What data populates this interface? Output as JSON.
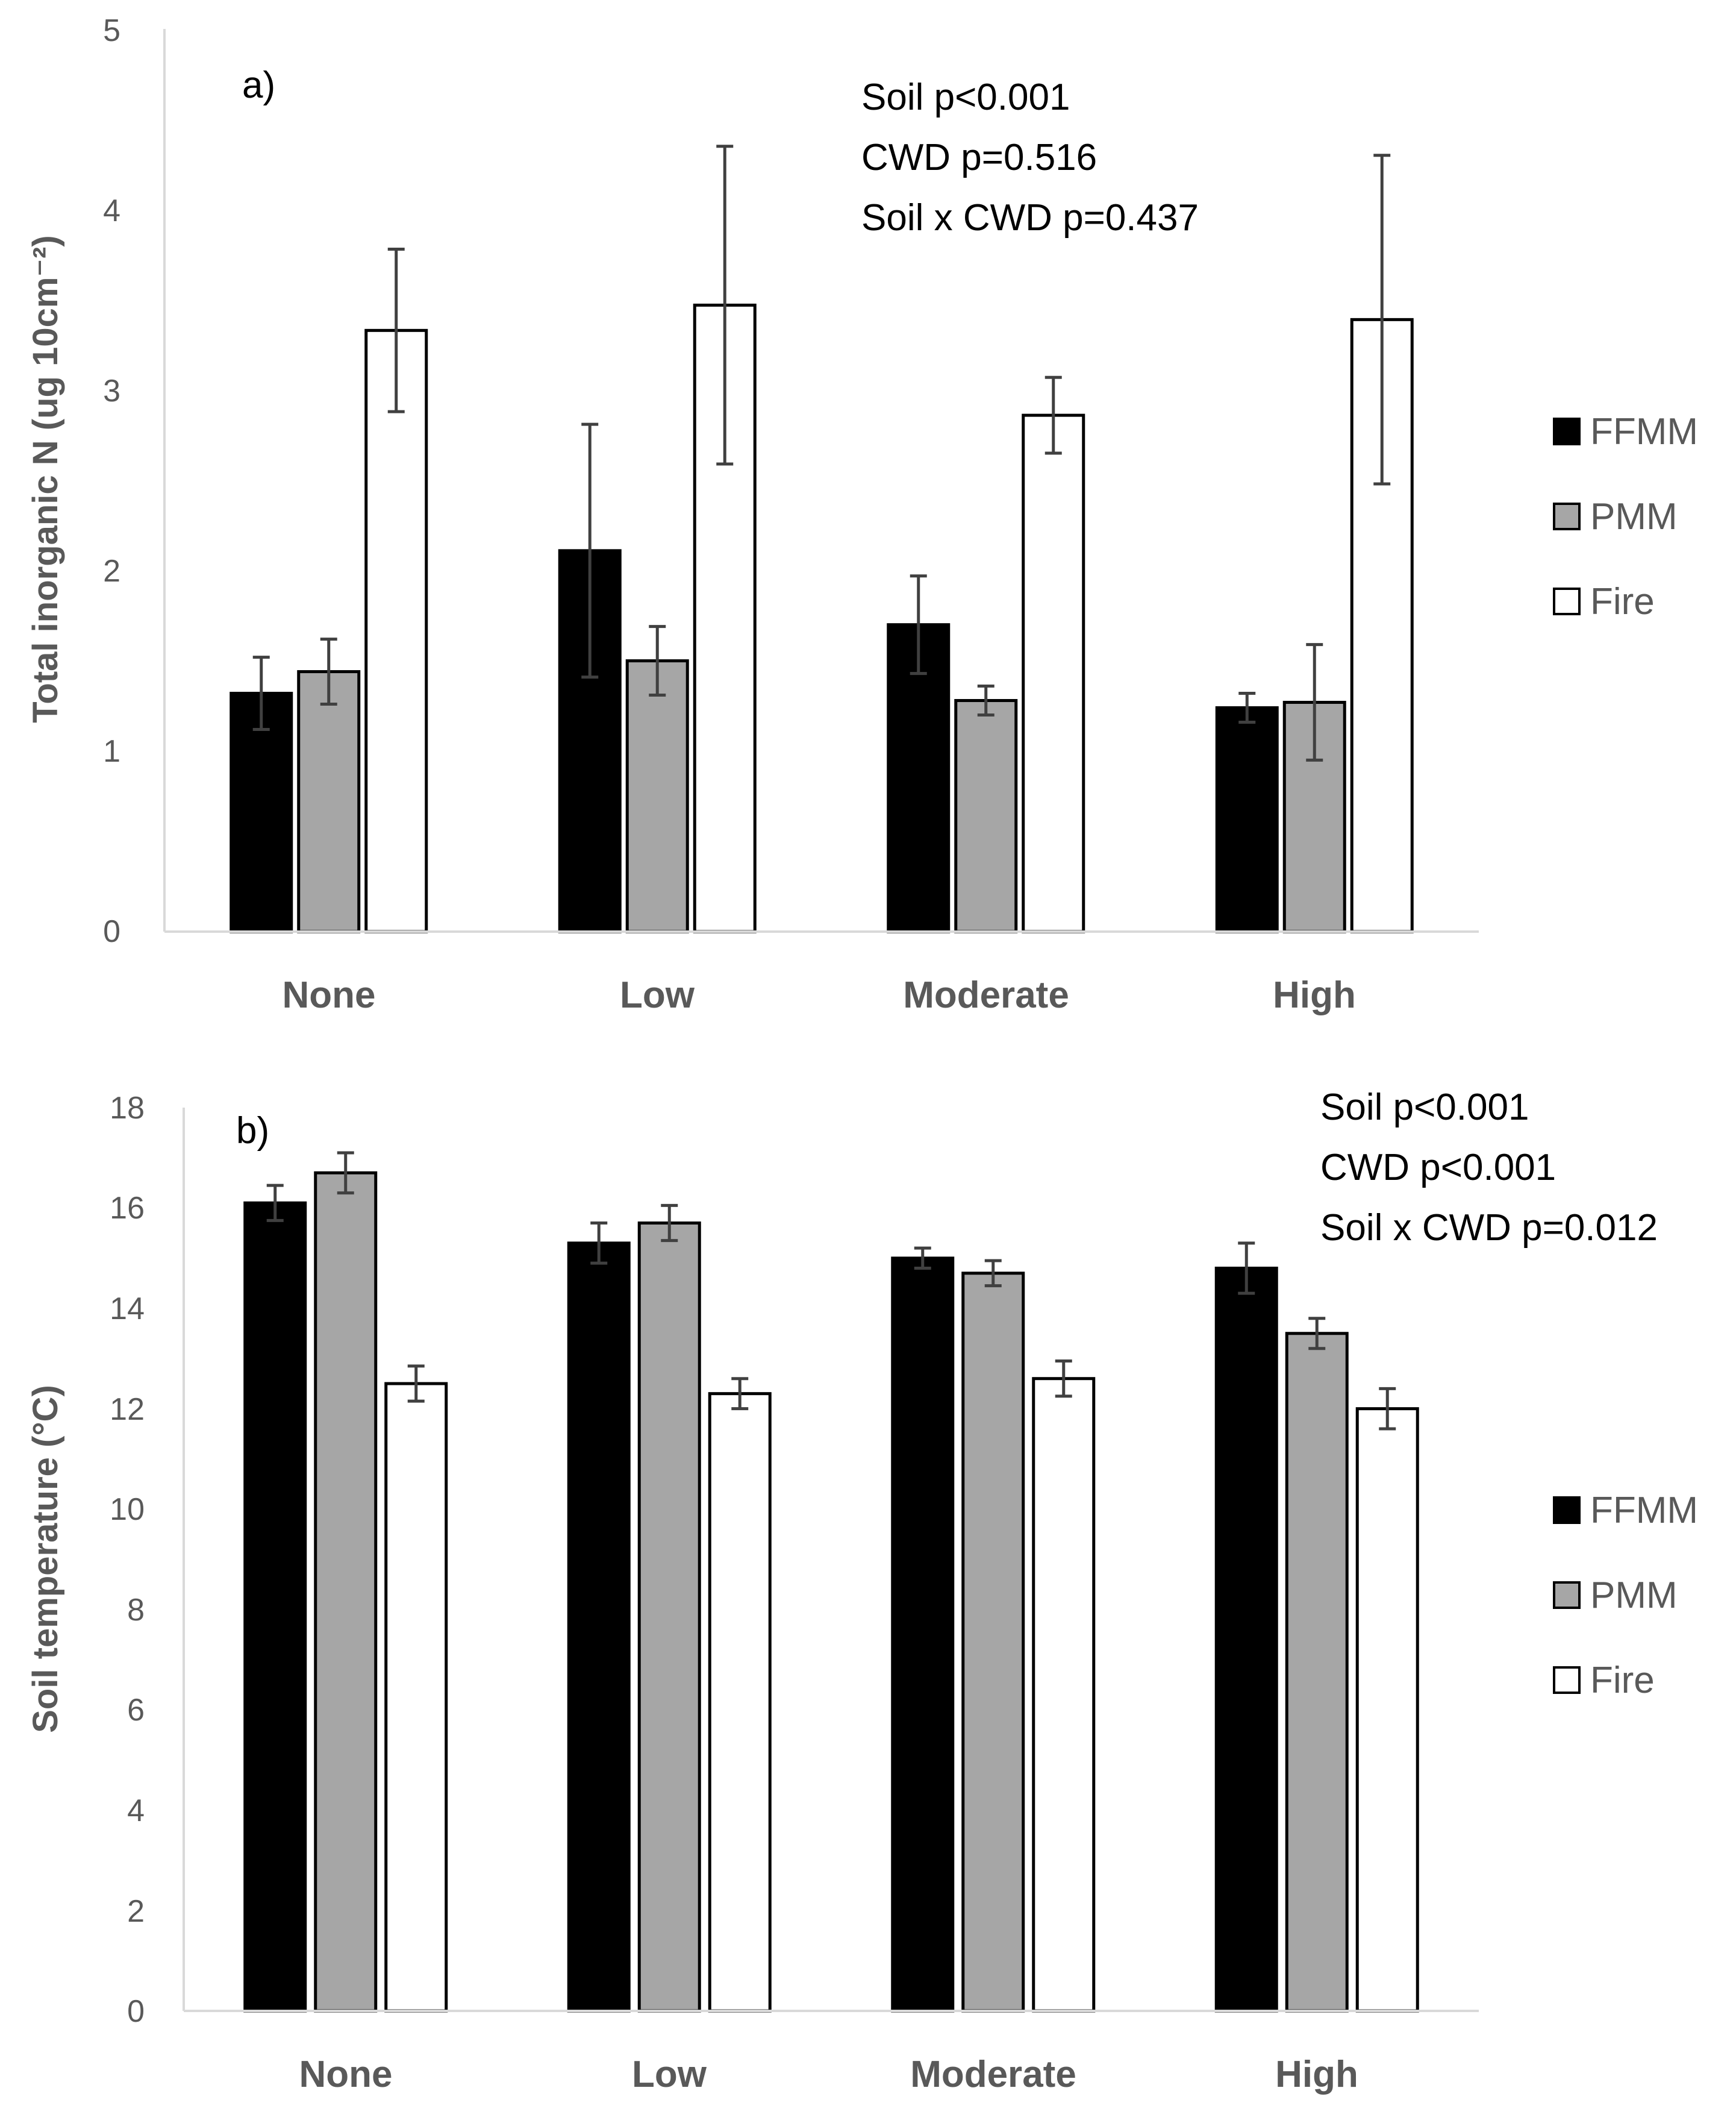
{
  "chart_data": [
    {
      "type": "bar",
      "panel_label": "a)",
      "ylabel": "Total inorganic N (ug 10cm⁻²)",
      "xlabel": "",
      "ylim": [
        0,
        5
      ],
      "yticks": [
        "0",
        "1",
        "2",
        "3",
        "4",
        "5"
      ],
      "categories": [
        "None",
        "Low",
        "Moderate",
        "High"
      ],
      "series": [
        {
          "name": "FFMM",
          "color": "#000000",
          "values": [
            1.32,
            2.11,
            1.7,
            1.24
          ],
          "errors": [
            0.2,
            0.7,
            0.27,
            0.08
          ]
        },
        {
          "name": "PMM",
          "color": "#a6a6a6",
          "values": [
            1.44,
            1.5,
            1.28,
            1.27
          ],
          "errors": [
            0.18,
            0.19,
            0.08,
            0.32
          ]
        },
        {
          "name": "Fire",
          "color": "#ffffff",
          "values": [
            3.33,
            3.47,
            2.86,
            3.39
          ],
          "errors": [
            0.45,
            0.88,
            0.21,
            0.91
          ]
        }
      ],
      "annotations": [
        "Soil p<0.001",
        "CWD p=0.516",
        "Soil x CWD p=0.437"
      ],
      "legend": "right"
    },
    {
      "type": "bar",
      "panel_label": "b)",
      "ylabel": "Soil temperature (°C)",
      "xlabel": "",
      "ylim": [
        0,
        18
      ],
      "yticks": [
        "0",
        "2",
        "4",
        "6",
        "8",
        "10",
        "12",
        "14",
        "16",
        "18"
      ],
      "categories": [
        "None",
        "Low",
        "Moderate",
        "High"
      ],
      "series": [
        {
          "name": "FFMM",
          "color": "#000000",
          "values": [
            16.1,
            15.3,
            15.0,
            14.8
          ],
          "errors": [
            0.35,
            0.4,
            0.2,
            0.5
          ]
        },
        {
          "name": "PMM",
          "color": "#a6a6a6",
          "values": [
            16.7,
            15.7,
            14.7,
            13.5
          ],
          "errors": [
            0.4,
            0.35,
            0.25,
            0.3
          ]
        },
        {
          "name": "Fire",
          "color": "#ffffff",
          "values": [
            12.5,
            12.3,
            12.6,
            12.0
          ],
          "errors": [
            0.35,
            0.3,
            0.35,
            0.4
          ]
        }
      ],
      "annotations": [
        "Soil p<0.001",
        "CWD p<0.001",
        "Soil x CWD p=0.012"
      ],
      "legend": "right"
    }
  ]
}
